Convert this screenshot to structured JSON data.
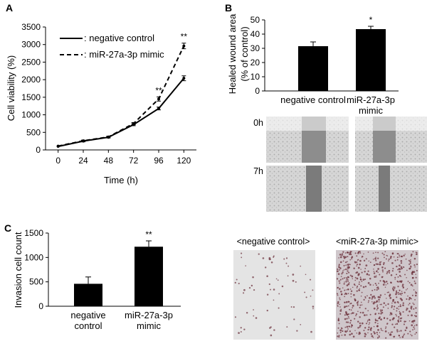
{
  "panels": {
    "a": "A",
    "b": "B",
    "c": "C"
  },
  "colors": {
    "ink": "#000000",
    "photo_bg": "#d8d8d8",
    "stain_dot": "#6b2f3a"
  },
  "chart_data": [
    {
      "id": "A",
      "type": "line",
      "x": [
        0,
        24,
        48,
        72,
        96,
        120
      ],
      "series": [
        {
          "name": "negative control",
          "legend_label": ": negative control",
          "style": "solid",
          "values": [
            100,
            250,
            360,
            720,
            1180,
            2040
          ],
          "errors": [
            0,
            20,
            20,
            30,
            40,
            70
          ]
        },
        {
          "name": "miR-27a-3p mimic",
          "legend_label": ": miR-27a-3p mimic",
          "style": "dashed",
          "values": [
            110,
            260,
            370,
            750,
            1450,
            2960
          ],
          "errors": [
            0,
            20,
            20,
            30,
            60,
            80
          ]
        }
      ],
      "significance": [
        {
          "x": 96,
          "label": "**"
        },
        {
          "x": 120,
          "label": "**"
        }
      ],
      "xlabel": "Time (h)",
      "ylabel": "Cell viability (%)",
      "xticks": [
        "0",
        "24",
        "48",
        "72",
        "96",
        "120"
      ],
      "yticks": [
        "0",
        "500",
        "1000",
        "1500",
        "2000",
        "2500",
        "3000",
        "3500"
      ],
      "ylim": [
        0,
        3500
      ],
      "xlim": [
        -12,
        132
      ]
    },
    {
      "id": "B",
      "type": "bar",
      "categories": [
        "negative control",
        "miR-27a-3p mimic"
      ],
      "category_lines": [
        [
          "negative control"
        ],
        [
          "miR-27a-3p",
          "mimic"
        ]
      ],
      "values": [
        31.5,
        43.5
      ],
      "errors": [
        3,
        2
      ],
      "significance": [
        "",
        "*"
      ],
      "ylabel_lines": [
        "Healed wound area",
        "(% of control)"
      ],
      "yticks": [
        "0",
        "10",
        "20",
        "30",
        "40",
        "50"
      ],
      "ylim": [
        0,
        50
      ]
    },
    {
      "id": "C",
      "type": "bar",
      "categories": [
        "negative control",
        "miR-27a-3p mimic"
      ],
      "category_lines": [
        [
          "negative",
          "control"
        ],
        [
          "miR-27a-3p",
          "mimic"
        ]
      ],
      "values": [
        460,
        1220
      ],
      "errors": [
        140,
        120
      ],
      "significance": [
        "",
        "**"
      ],
      "ylabel": "Invasion cell count",
      "yticks": [
        "0",
        "500",
        "1000",
        "1500"
      ],
      "ylim": [
        0,
        1500
      ]
    }
  ],
  "wound_images": {
    "row_labels": [
      "0h",
      "7h"
    ]
  },
  "invasion_images": {
    "labels": [
      "<negative control>",
      "<miR-27a-3p mimic>"
    ]
  }
}
